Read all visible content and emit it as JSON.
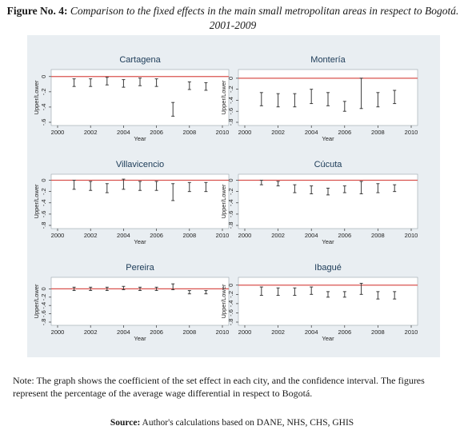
{
  "caption": {
    "label": "Figure No. 4:",
    "text": "Comparison to the fixed effects in the main small metropolitan areas in respect to Bogotá. 2001-2009"
  },
  "colors": {
    "panel_bg": "#e9eef2",
    "plot_bg": "#ffffff",
    "reference_line": "#d9534f",
    "interval": "#3a3a3a"
  },
  "chart_data": [
    {
      "type": "errorbar",
      "title": "Cartagena",
      "xlabel": "Year",
      "ylabel": "Upper/Lower",
      "xticks": [
        2000,
        2002,
        2004,
        2006,
        2008,
        2010
      ],
      "yticks": [
        "0",
        "-.2",
        "-.4",
        "-.6"
      ],
      "xlim": [
        2000,
        2010
      ],
      "ylim": [
        -0.6,
        0.05
      ],
      "reference": 0,
      "x": [
        2001,
        2002,
        2003,
        2004,
        2005,
        2006,
        2007,
        2008,
        2009
      ],
      "lower": [
        -0.13,
        -0.13,
        -0.11,
        -0.14,
        -0.12,
        -0.13,
        -0.52,
        -0.17,
        -0.18
      ],
      "upper": [
        -0.03,
        -0.03,
        -0.01,
        -0.04,
        -0.02,
        -0.03,
        -0.34,
        -0.07,
        -0.08
      ]
    },
    {
      "type": "errorbar",
      "title": "Montería",
      "xlabel": "Year",
      "ylabel": "Upper/Lower",
      "xticks": [
        2000,
        2002,
        2004,
        2006,
        2008,
        2010
      ],
      "yticks": [
        "0",
        "-.2",
        "-.4",
        "-.6",
        "-.8"
      ],
      "xlim": [
        2000,
        2010
      ],
      "ylim": [
        -0.8,
        0.1
      ],
      "reference": 0,
      "x": [
        2001,
        2002,
        2003,
        2004,
        2005,
        2006,
        2007,
        2008,
        2009
      ],
      "lower": [
        -0.5,
        -0.52,
        -0.52,
        -0.46,
        -0.5,
        -0.6,
        -0.55,
        -0.52,
        -0.46
      ],
      "upper": [
        -0.26,
        -0.28,
        -0.28,
        -0.2,
        -0.26,
        -0.42,
        0.0,
        -0.26,
        -0.22
      ]
    },
    {
      "type": "errorbar",
      "title": "Villavicencio",
      "xlabel": "Year",
      "ylabel": "Upper/Lower",
      "xticks": [
        2000,
        2002,
        2004,
        2006,
        2008,
        2010
      ],
      "yticks": [
        "0",
        "-.2",
        "-.4",
        "-.6",
        "-.8"
      ],
      "xlim": [
        2000,
        2010
      ],
      "ylim": [
        -0.8,
        0.05
      ],
      "reference": 0,
      "x": [
        2001,
        2002,
        2003,
        2004,
        2005,
        2006,
        2007,
        2008,
        2009
      ],
      "lower": [
        -0.16,
        -0.18,
        -0.22,
        -0.16,
        -0.18,
        -0.18,
        -0.36,
        -0.2,
        -0.2
      ],
      "upper": [
        0.0,
        -0.02,
        -0.06,
        0.02,
        -0.02,
        -0.02,
        -0.06,
        -0.04,
        -0.04
      ]
    },
    {
      "type": "errorbar",
      "title": "Cúcuta",
      "xlabel": "Year",
      "ylabel": "Upper/Lower",
      "xticks": [
        2000,
        2002,
        2004,
        2006,
        2008,
        2010
      ],
      "yticks": [
        "0",
        "-.2",
        "-.4",
        "-.6",
        "-.8"
      ],
      "xlim": [
        2000,
        2010
      ],
      "ylim": [
        -0.8,
        0.05
      ],
      "reference": 0,
      "x": [
        2001,
        2002,
        2003,
        2004,
        2005,
        2006,
        2007,
        2008,
        2009
      ],
      "lower": [
        -0.08,
        -0.1,
        -0.22,
        -0.24,
        -0.26,
        -0.22,
        -0.24,
        -0.22,
        -0.2
      ],
      "upper": [
        0.0,
        -0.02,
        -0.08,
        -0.1,
        -0.14,
        -0.1,
        -0.02,
        -0.06,
        -0.08
      ]
    },
    {
      "type": "errorbar",
      "title": "Pereira",
      "xlabel": "Year",
      "ylabel": "Upper/Lower",
      "xticks": [
        2000,
        2002,
        2004,
        2006,
        2008,
        2010
      ],
      "yticks": [
        "0",
        "-.2",
        "-.4",
        "-.6",
        "-.8"
      ],
      "xlim": [
        2000,
        2010
      ],
      "ylim": [
        -0.8,
        0.2
      ],
      "reference": 0,
      "x": [
        2001,
        2002,
        2003,
        2004,
        2005,
        2006,
        2007,
        2008,
        2009
      ],
      "lower": [
        -0.04,
        -0.04,
        -0.04,
        -0.02,
        -0.04,
        -0.04,
        -0.02,
        -0.12,
        -0.12
      ],
      "upper": [
        0.04,
        0.04,
        0.04,
        0.06,
        0.04,
        0.04,
        0.12,
        -0.04,
        -0.04
      ]
    },
    {
      "type": "errorbar",
      "title": "Ibagué",
      "xlabel": "Year",
      "ylabel": "Upper/Lower",
      "xticks": [
        2000,
        2002,
        2004,
        2006,
        2008,
        2010
      ],
      "yticks": [
        "0",
        "-.2",
        "-.4",
        "-.6",
        "-.8"
      ],
      "xlim": [
        2000,
        2010
      ],
      "ylim": [
        -0.8,
        0.1
      ],
      "reference": 0,
      "x": [
        2001,
        2002,
        2003,
        2004,
        2005,
        2006,
        2007,
        2008,
        2009
      ],
      "lower": [
        -0.22,
        -0.22,
        -0.22,
        -0.2,
        -0.26,
        -0.26,
        -0.2,
        -0.3,
        -0.3
      ],
      "upper": [
        -0.04,
        -0.06,
        -0.06,
        -0.04,
        -0.14,
        -0.14,
        0.04,
        -0.14,
        -0.14
      ]
    }
  ],
  "note": "Note: The graph shows the coefficient of the set effect in each city, and the confidence interval. The figures represent the percentage of the average wage differential in respect to Bogotá.",
  "source": {
    "label": "Source:",
    "text": "Author's calculations based on DANE, NHS, CHS, GHIS"
  }
}
